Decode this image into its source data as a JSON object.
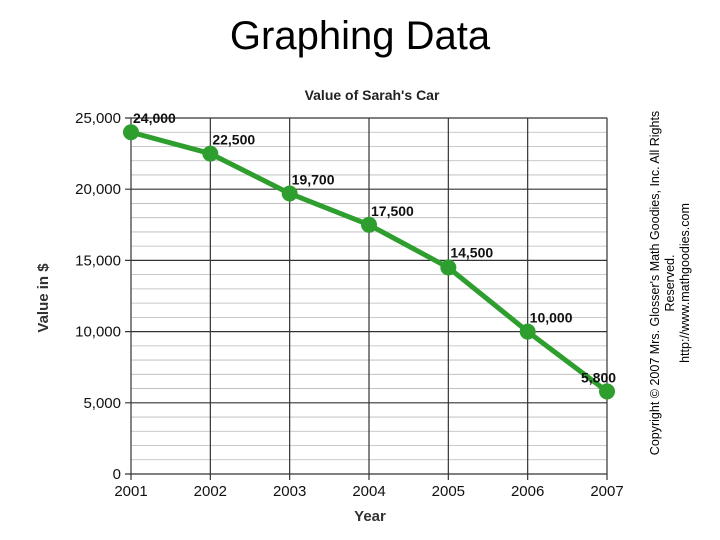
{
  "page_title": "Graphing Data",
  "copyright": {
    "line1": "Copyright © 2007 Mrs. Glosser's Math Goodies, Inc. All Rights Reserved.",
    "line2": "http://www.mathgoodies.com"
  },
  "chart_data": {
    "type": "line",
    "title": "Value of Sarah's Car",
    "xlabel": "Year",
    "ylabel": "Value in $",
    "categories": [
      "2001",
      "2002",
      "2003",
      "2004",
      "2005",
      "2006",
      "2007"
    ],
    "values": [
      24000,
      22500,
      19700,
      17500,
      14500,
      10000,
      5800
    ],
    "data_labels": [
      "24,000",
      "22,500",
      "19,700",
      "17,500",
      "14,500",
      "10,000",
      "5,800"
    ],
    "ylim": [
      0,
      25000
    ],
    "y_ticks": [
      0,
      5000,
      10000,
      15000,
      20000,
      25000
    ],
    "y_tick_labels": [
      "0",
      "5,000",
      "10,000",
      "15,000",
      "20,000",
      "25,000"
    ],
    "y_minor_step": 1000,
    "grid": true,
    "line_color": "#2e9e2e",
    "marker_color": "#2e9e2e"
  }
}
